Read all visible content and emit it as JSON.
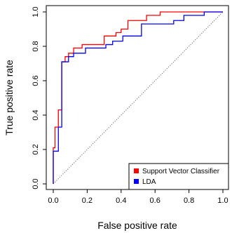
{
  "chart_data": {
    "type": "line",
    "title": "",
    "xlabel": "False positive rate",
    "ylabel": "True positive rate",
    "xlim": [
      0,
      1
    ],
    "ylim": [
      0,
      1
    ],
    "x_ticks": [
      0.0,
      0.2,
      0.4,
      0.6,
      0.8,
      1.0
    ],
    "y_ticks": [
      0.0,
      0.2,
      0.4,
      0.6,
      0.8,
      1.0
    ],
    "x_tick_labels": [
      "0.0",
      "0.2",
      "0.4",
      "0.6",
      "0.8",
      "1.0"
    ],
    "y_tick_labels": [
      "0.0",
      "0.2",
      "0.4",
      "0.6",
      "0.8",
      "1.0"
    ],
    "grid": false,
    "legend_position": "bottom-right",
    "reference_line": {
      "x": [
        0,
        1
      ],
      "y": [
        0,
        1
      ],
      "style": "dotted"
    },
    "series": [
      {
        "name": "Support Vector Classifier",
        "color": "#ff0000",
        "x": [
          0.0,
          0.0,
          0.01,
          0.01,
          0.03,
          0.03,
          0.05,
          0.05,
          0.07,
          0.07,
          0.09,
          0.09,
          0.12,
          0.12,
          0.17,
          0.17,
          0.3,
          0.3,
          0.37,
          0.37,
          0.4,
          0.4,
          0.44,
          0.44,
          0.55,
          0.55,
          0.63,
          0.63,
          1.0
        ],
        "y": [
          0.0,
          0.21,
          0.21,
          0.33,
          0.33,
          0.43,
          0.43,
          0.71,
          0.71,
          0.74,
          0.74,
          0.76,
          0.76,
          0.79,
          0.79,
          0.81,
          0.81,
          0.86,
          0.86,
          0.88,
          0.88,
          0.9,
          0.9,
          0.95,
          0.95,
          0.98,
          0.98,
          1.0,
          1.0
        ]
      },
      {
        "name": "LDA",
        "color": "#0000ff",
        "x": [
          0.0,
          0.0,
          0.03,
          0.03,
          0.05,
          0.05,
          0.09,
          0.09,
          0.12,
          0.12,
          0.19,
          0.19,
          0.31,
          0.31,
          0.35,
          0.35,
          0.41,
          0.41,
          0.52,
          0.52,
          0.71,
          0.71,
          0.77,
          0.77,
          0.89,
          0.89,
          1.0
        ],
        "y": [
          0.0,
          0.19,
          0.19,
          0.33,
          0.33,
          0.71,
          0.71,
          0.74,
          0.74,
          0.76,
          0.76,
          0.79,
          0.79,
          0.81,
          0.81,
          0.83,
          0.83,
          0.86,
          0.86,
          0.93,
          0.93,
          0.95,
          0.95,
          0.98,
          0.98,
          1.0,
          1.0
        ]
      }
    ]
  }
}
